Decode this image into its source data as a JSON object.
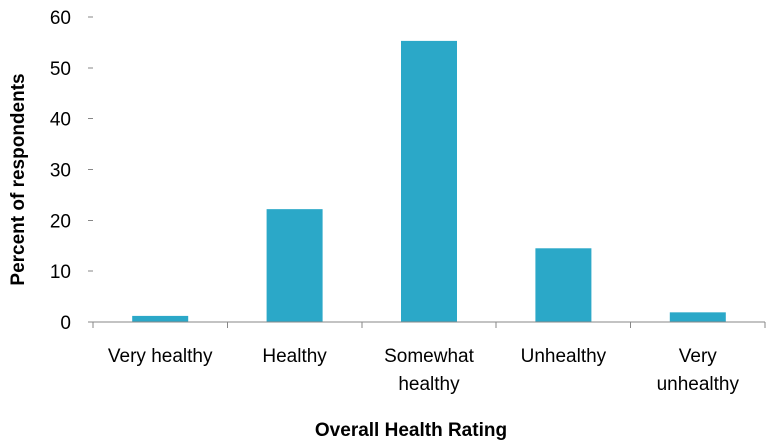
{
  "chart_data": {
    "type": "bar",
    "title": "",
    "xlabel": "Overall Health Rating",
    "ylabel": "Percent of respondents",
    "categories": [
      "Very healthy",
      "Healthy",
      "Somewhat healthy",
      "Unhealthy",
      "Very unhealthy"
    ],
    "category_label_lines": [
      [
        "Very healthy"
      ],
      [
        "Healthy"
      ],
      [
        "Somewhat",
        "healthy"
      ],
      [
        "Unhealthy"
      ],
      [
        "Very",
        "unhealthy"
      ]
    ],
    "values": [
      1.2,
      22.2,
      55.3,
      14.5,
      1.9
    ],
    "ylim": [
      0,
      60
    ],
    "yticks": [
      0,
      10,
      20,
      30,
      40,
      50,
      60
    ],
    "bar_color": "#2BA8C8",
    "axis_color": "#878787",
    "grid": false,
    "legend": "none"
  }
}
